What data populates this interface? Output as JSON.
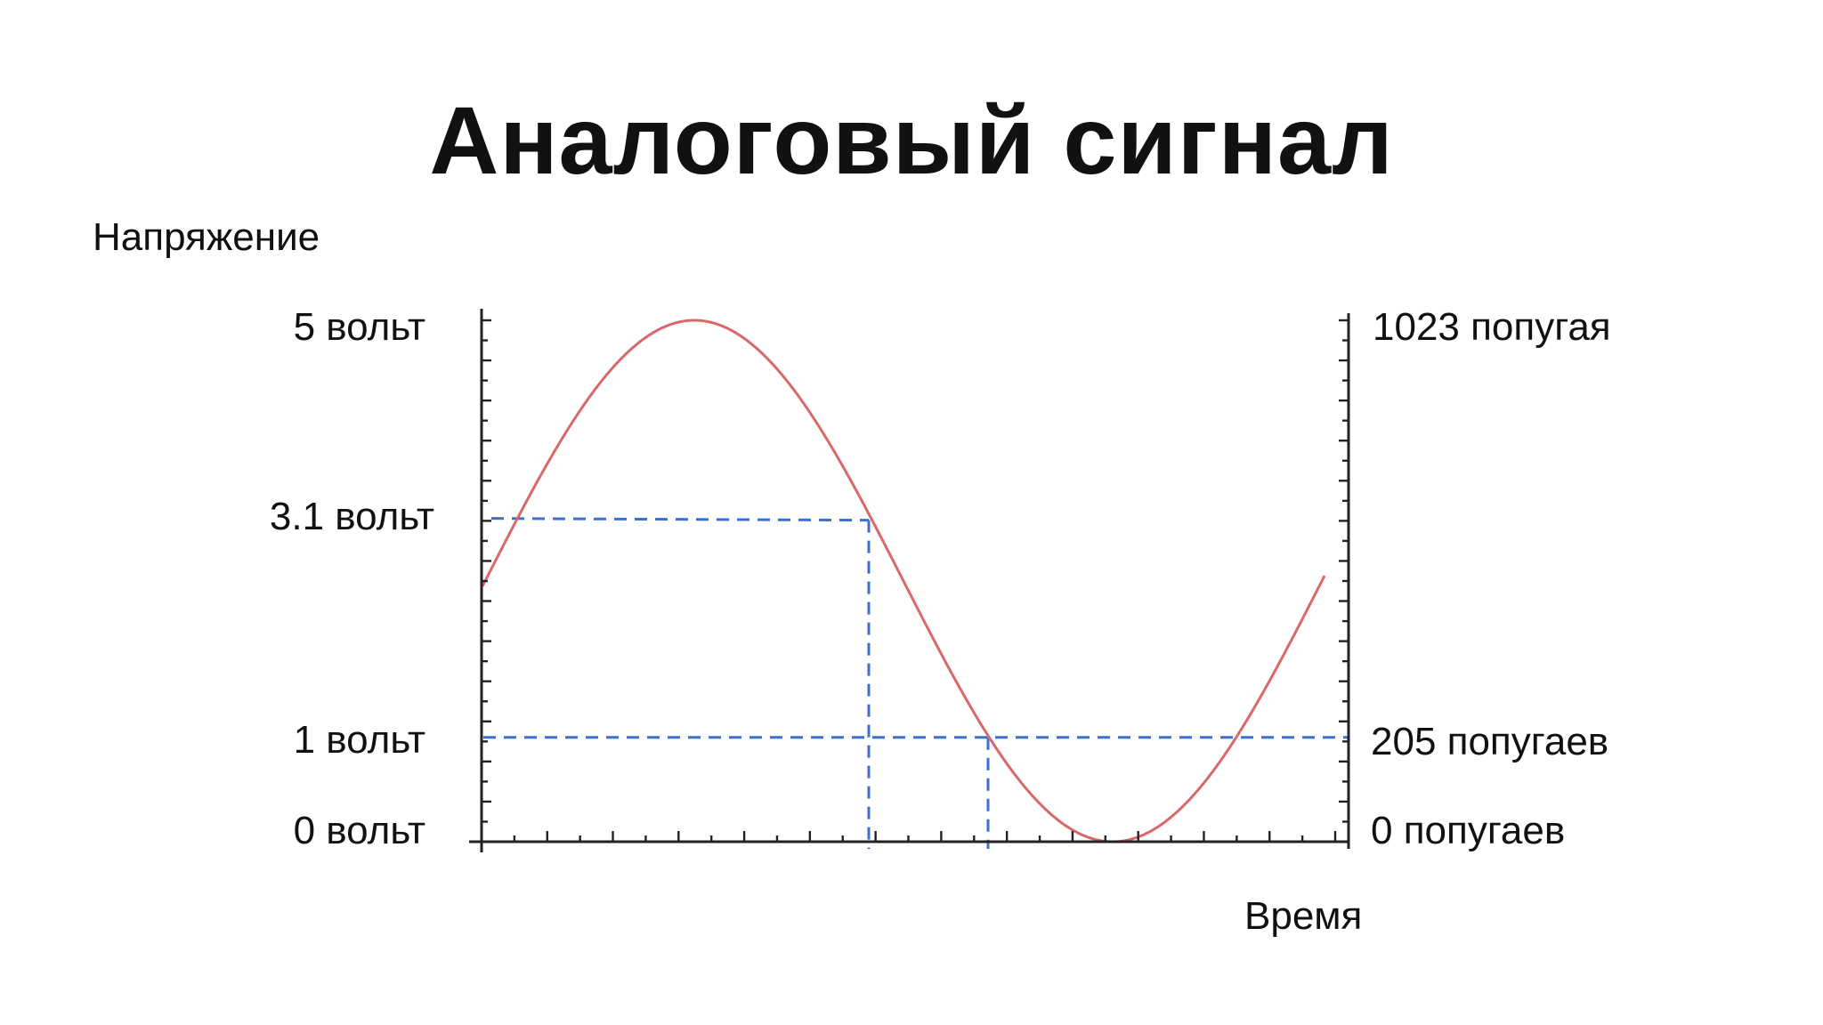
{
  "slide": {
    "title": "Аналоговый сигнал"
  },
  "chart_data": {
    "type": "line",
    "title": "Аналоговый сигнал",
    "ylabel": "Напряжение",
    "xlabel": "Время",
    "ylim": [
      0,
      5
    ],
    "y2lim": [
      0,
      1023
    ],
    "grid": false,
    "x_ticks": false,
    "left_tick_labels": [
      {
        "value": 5,
        "label": "5 вольт"
      },
      {
        "value": 3.1,
        "label": "3.1 вольт"
      },
      {
        "value": 1,
        "label": "1 вольт"
      },
      {
        "value": 0,
        "label": "0 вольт"
      }
    ],
    "right_tick_labels": [
      {
        "value": 1023,
        "label": "1023 попугая"
      },
      {
        "value": 205,
        "label": "205 попугаев"
      },
      {
        "value": 0,
        "label": "0 попугаев"
      }
    ],
    "series": [
      {
        "color": "#d9686a",
        "function": "sine",
        "offset": 2.5,
        "amplitude": 2.5,
        "x_range": [
          0,
          1.95
        ],
        "phase_start": 0.1,
        "period_fraction": 1.95
      }
    ],
    "reference_lines": [
      {
        "type": "horizontal",
        "y": 3.1,
        "from_x": 0,
        "to_x": 0.9,
        "color": "#3b6fd4"
      },
      {
        "type": "vertical",
        "x": 0.9,
        "from_y": 0,
        "to_y": 3.1,
        "color": "#3b6fd4"
      },
      {
        "type": "horizontal",
        "y": 1,
        "from_x": 0,
        "to_x": 2.0,
        "color": "#3b6fd4"
      },
      {
        "type": "vertical",
        "x": 1.18,
        "from_y": 0,
        "to_y": 1,
        "color": "#3b6fd4"
      }
    ],
    "colors": {
      "curve": "#d9686a",
      "reference": "#3b6fd4",
      "axis": "#222222"
    }
  }
}
